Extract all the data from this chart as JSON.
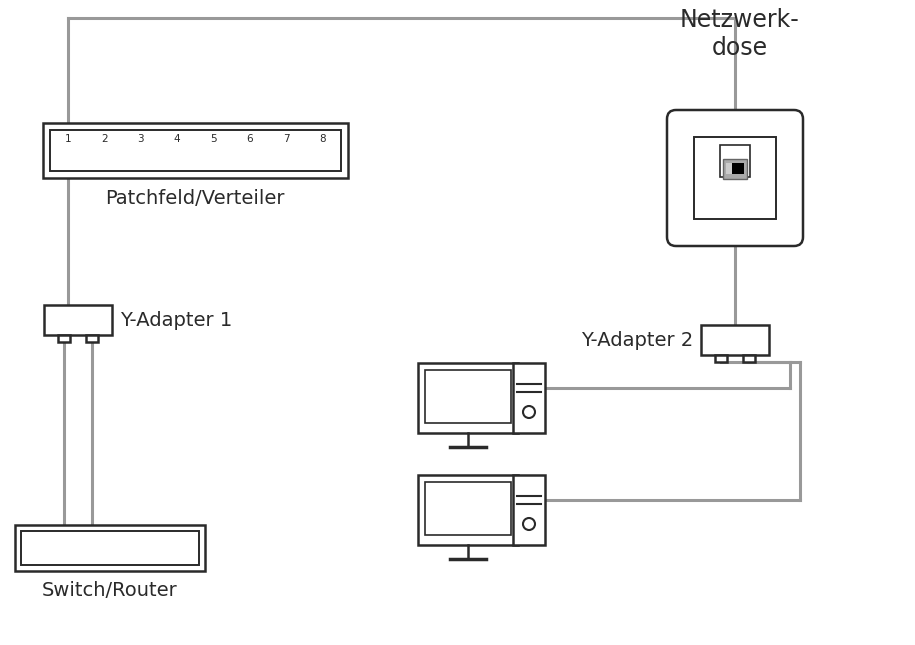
{
  "bg_color": "#ffffff",
  "lc": "#2a2a2a",
  "gc": "#999999",
  "label_netzwerk": "Netzwerk-\ndose",
  "label_patchfeld": "Patchfeld/Verteiler",
  "label_yadapter1": "Y-Adapter 1",
  "label_yadapter2": "Y-Adapter 2",
  "label_switch": "Switch/Router",
  "port_numbers": [
    "1",
    "2",
    "3",
    "4",
    "5",
    "6",
    "7",
    "8"
  ],
  "figw": 9.15,
  "figh": 6.45,
  "dpi": 100
}
